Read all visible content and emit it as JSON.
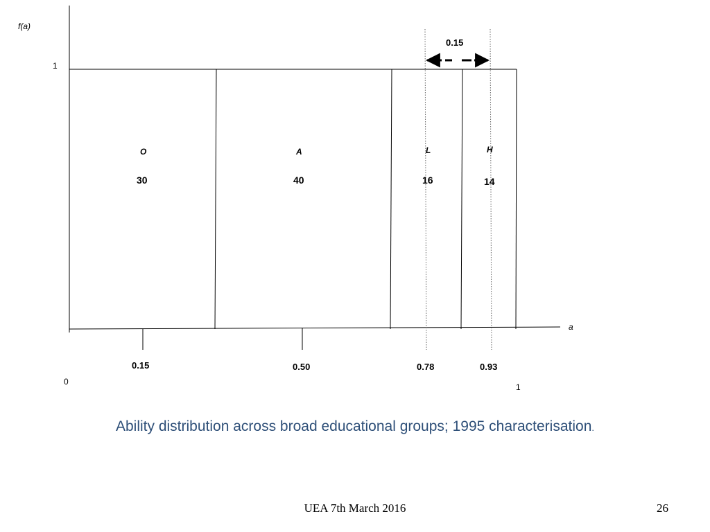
{
  "diagram": {
    "y_axis_label": "f(a)",
    "x_axis_label": "a",
    "y_tick": "1",
    "origin_label": "0",
    "x_end_label": "1",
    "width_annotation": "0.15",
    "groups": [
      {
        "letter": "O",
        "value": "30"
      },
      {
        "letter": "A",
        "value": "40"
      },
      {
        "letter": "L",
        "value": "16"
      },
      {
        "letter": "H",
        "value": "14"
      }
    ],
    "x_markers": [
      "0.15",
      "0.50",
      "0.78",
      "0.93"
    ]
  },
  "caption": {
    "text": "Ability distribution across broad educational groups; 1995 characterisation",
    "end": "."
  },
  "footer": {
    "event": "UEA 7th March 2016",
    "page": "26"
  }
}
